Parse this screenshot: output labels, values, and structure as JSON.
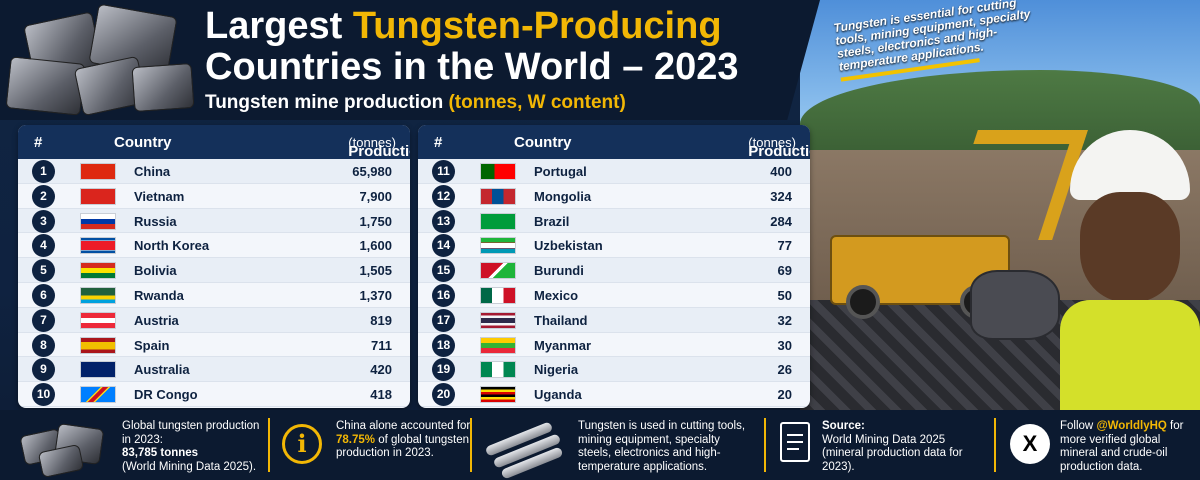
{
  "header": {
    "title_line1_a": "Largest ",
    "title_line1_b": "Tungsten-Producing",
    "title_line2": "Countries in the World – 2023",
    "subtitle_a": "Tungsten mine production ",
    "subtitle_b": "(tonnes, W content)"
  },
  "note": "Tungsten is essential for cutting tools, mining equipment, specialty steels, electronics and high-temperature applications.",
  "table_headers": {
    "num": "#",
    "country": "Country",
    "production": "Production",
    "unit": "(tonnes)"
  },
  "rows_left": [
    {
      "rank": "1",
      "country": "China",
      "value": "65,980",
      "flag": "china-flag"
    },
    {
      "rank": "2",
      "country": "Vietnam",
      "value": "7,900",
      "flag": "vietnam-flag"
    },
    {
      "rank": "3",
      "country": "Russia",
      "value": "1,750",
      "flag": "russia-flag"
    },
    {
      "rank": "4",
      "country": "North Korea",
      "value": "1,600",
      "flag": "north-korea-flag"
    },
    {
      "rank": "5",
      "country": "Bolivia",
      "value": "1,505",
      "flag": "bolivia-flag"
    },
    {
      "rank": "6",
      "country": "Rwanda",
      "value": "1,370",
      "flag": "rwanda-flag"
    },
    {
      "rank": "7",
      "country": "Austria",
      "value": "819",
      "flag": "austria-flag"
    },
    {
      "rank": "8",
      "country": "Spain",
      "value": "711",
      "flag": "spain-flag"
    },
    {
      "rank": "9",
      "country": "Australia",
      "value": "420",
      "flag": "australia-flag"
    },
    {
      "rank": "10",
      "country": "DR Congo",
      "value": "418",
      "flag": "dr-congo-flag"
    }
  ],
  "rows_right": [
    {
      "rank": "11",
      "country": "Portugal",
      "value": "400",
      "flag": "portugal-flag"
    },
    {
      "rank": "12",
      "country": "Mongolia",
      "value": "324",
      "flag": "mongolia-flag"
    },
    {
      "rank": "13",
      "country": "Brazil",
      "value": "284",
      "flag": "brazil-flag"
    },
    {
      "rank": "14",
      "country": "Uzbekistan",
      "value": "77",
      "flag": "uzbekistan-flag"
    },
    {
      "rank": "15",
      "country": "Burundi",
      "value": "69",
      "flag": "burundi-flag"
    },
    {
      "rank": "16",
      "country": "Mexico",
      "value": "50",
      "flag": "mexico-flag"
    },
    {
      "rank": "17",
      "country": "Thailand",
      "value": "32",
      "flag": "thailand-flag"
    },
    {
      "rank": "18",
      "country": "Myanmar",
      "value": "30",
      "flag": "myanmar-flag"
    },
    {
      "rank": "19",
      "country": "Nigeria",
      "value": "26",
      "flag": "nigeria-flag"
    },
    {
      "rank": "20",
      "country": "Uganda",
      "value": "20",
      "flag": "uganda-flag"
    }
  ],
  "footer": {
    "global_a": "Global tungsten production in 2023:",
    "global_b": "83,785 tonnes",
    "global_c": "(World Mining Data 2025).",
    "china_a": "China alone accounted for ",
    "china_b": "78.75%",
    "china_c": " of global tungsten production in 2023.",
    "uses": "Tungsten is used in cutting tools, mining equipment, specialty steels, electronics and high-temperature applications.",
    "source_title": "Source:",
    "source_a": "World Mining Data 2025",
    "source_b": "(mineral production data for 2023).",
    "follow_a": "Follow ",
    "follow_handle": "@WorldlyHQ",
    "follow_b": " for more verified global mineral and crude-oil production data.",
    "x_logo": "X",
    "info_glyph": "i"
  },
  "colors": {
    "navy": "#0e2240",
    "accent": "#f2b705"
  }
}
